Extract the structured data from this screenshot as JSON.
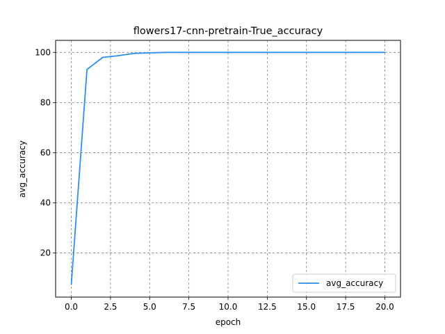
{
  "chart_data": {
    "type": "line",
    "title": "flowers17-cnn-pretrain-True_accuracy",
    "xlabel": "epoch",
    "ylabel": "avg_accuracy",
    "xlim": [
      -1,
      21
    ],
    "ylim": [
      2.4,
      104.8
    ],
    "xticks": [
      0.0,
      2.5,
      5.0,
      7.5,
      10.0,
      12.5,
      15.0,
      17.5,
      20.0
    ],
    "xtick_labels": [
      "0.0",
      "2.5",
      "5.0",
      "7.5",
      "10.0",
      "12.5",
      "15.0",
      "17.5",
      "20.0"
    ],
    "yticks": [
      20,
      40,
      60,
      80,
      100
    ],
    "ytick_labels": [
      "20",
      "40",
      "60",
      "80",
      "100"
    ],
    "grid": true,
    "legend_position": "lower-right",
    "series": [
      {
        "name": "avg_accuracy",
        "color": "#2a8ff0",
        "x": [
          0,
          1,
          2,
          3,
          4,
          5,
          6,
          7,
          8,
          9,
          10,
          11,
          12,
          13,
          14,
          15,
          16,
          17,
          18,
          19,
          20
        ],
        "y": [
          7.5,
          93.2,
          98.0,
          98.7,
          99.6,
          99.8,
          100,
          100,
          100,
          100,
          100,
          100,
          100,
          100,
          100,
          100,
          100,
          100,
          100,
          100,
          100
        ]
      }
    ]
  }
}
